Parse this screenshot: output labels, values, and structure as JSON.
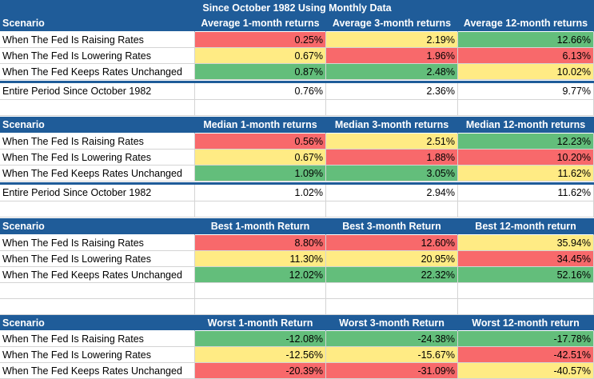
{
  "title": "Since October 1982 Using Monthly Data",
  "colors": {
    "header": "#1f5c99",
    "red": "#f8696b",
    "yellow": "#ffeb84",
    "green": "#63be7b"
  },
  "tables": [
    {
      "headers": [
        "Scenario",
        "Average 1-month returns",
        "Average 3-month returns",
        "Average 12-month returns"
      ],
      "rows": [
        {
          "label": "When The Fed Is Raising Rates",
          "values": [
            "0.25%",
            "2.19%",
            "12.66%"
          ],
          "colors": [
            "red",
            "yellow",
            "green"
          ]
        },
        {
          "label": "When The Fed Is Lowering Rates",
          "values": [
            "0.67%",
            "1.96%",
            "6.13%"
          ],
          "colors": [
            "yellow",
            "red",
            "red"
          ]
        },
        {
          "label": "When The Fed Keeps Rates Unchanged",
          "values": [
            "0.87%",
            "2.48%",
            "10.02%"
          ],
          "colors": [
            "green",
            "green",
            "yellow"
          ]
        }
      ],
      "total": {
        "label": "Entire Period Since October 1982",
        "values": [
          "0.76%",
          "2.36%",
          "9.77%"
        ]
      }
    },
    {
      "headers": [
        "Scenario",
        "Median 1-month returns",
        "Median 3-month returns",
        "Median 12-month returns"
      ],
      "rows": [
        {
          "label": "When The Fed Is Raising Rates",
          "values": [
            "0.56%",
            "2.51%",
            "12.23%"
          ],
          "colors": [
            "red",
            "yellow",
            "green"
          ]
        },
        {
          "label": "When The Fed Is Lowering Rates",
          "values": [
            "0.67%",
            "1.88%",
            "10.20%"
          ],
          "colors": [
            "yellow",
            "red",
            "red"
          ]
        },
        {
          "label": "When The Fed Keeps Rates Unchanged",
          "values": [
            "1.09%",
            "3.05%",
            "11.62%"
          ],
          "colors": [
            "green",
            "green",
            "yellow"
          ]
        }
      ],
      "total": {
        "label": "Entire Period Since October 1982",
        "values": [
          "1.02%",
          "2.94%",
          "11.62%"
        ]
      }
    },
    {
      "headers": [
        "Scenario",
        "Best 1-month Return",
        "Best 3-month Return",
        "Best 12-month return"
      ],
      "rows": [
        {
          "label": "When The Fed Is Raising Rates",
          "values": [
            "8.80%",
            "12.60%",
            "35.94%"
          ],
          "colors": [
            "red",
            "red",
            "yellow"
          ]
        },
        {
          "label": "When The Fed Is Lowering Rates",
          "values": [
            "11.30%",
            "20.95%",
            "34.45%"
          ],
          "colors": [
            "yellow",
            "yellow",
            "red"
          ]
        },
        {
          "label": "When The Fed Keeps Rates Unchanged",
          "values": [
            "12.02%",
            "22.32%",
            "52.16%"
          ],
          "colors": [
            "green",
            "green",
            "green"
          ]
        }
      ]
    },
    {
      "headers": [
        "Scenario",
        "Worst 1-month Return",
        "Worst 3-month Return",
        "Worst 12-month return"
      ],
      "rows": [
        {
          "label": "When The Fed Is Raising Rates",
          "values": [
            "-12.08%",
            "-24.38%",
            "-17.78%"
          ],
          "colors": [
            "green",
            "green",
            "green"
          ]
        },
        {
          "label": "When The Fed Is Lowering Rates",
          "values": [
            "-12.56%",
            "-15.67%",
            "-42.51%"
          ],
          "colors": [
            "yellow",
            "yellow",
            "red"
          ]
        },
        {
          "label": "When The Fed Keeps Rates Unchanged",
          "values": [
            "-20.39%",
            "-31.09%",
            "-40.57%"
          ],
          "colors": [
            "red",
            "red",
            "yellow"
          ]
        }
      ]
    }
  ]
}
